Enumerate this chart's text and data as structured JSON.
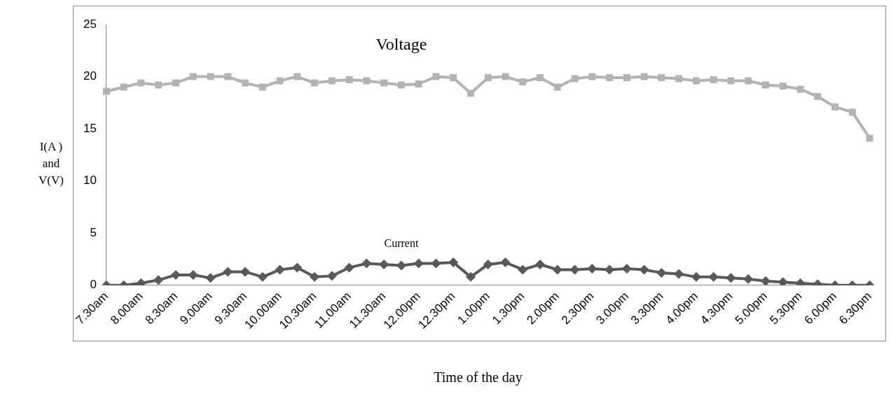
{
  "chart_data": {
    "type": "line",
    "xlabel": "Time of the day",
    "ylabel": "I(A ) and V(V)",
    "categories": [
      "7.30am",
      null,
      "8.00am",
      null,
      "8.30am",
      null,
      "9.00am",
      null,
      "9.30am",
      null,
      "10.00am",
      null,
      "10.30am",
      null,
      "11.00am",
      null,
      "11.30am",
      null,
      "12.00pm",
      null,
      "12.30pm",
      null,
      "1.00pm",
      null,
      "1.30pm",
      null,
      "2.00pm",
      null,
      "2.30pm",
      null,
      "3.00pm",
      null,
      "3.30pm",
      null,
      "4.00pm",
      null,
      "4.30pm",
      null,
      "5.00pm",
      null,
      "5.30pm",
      null,
      "6.00pm",
      null,
      "6.30pm"
    ],
    "series": [
      {
        "name": "Voltage",
        "color": "#b3b3b3",
        "marker": "square",
        "values": [
          18.6,
          19,
          19.4,
          19.2,
          19.4,
          20,
          20,
          20,
          19.4,
          19,
          19.6,
          20,
          19.4,
          19.6,
          19.7,
          19.6,
          19.4,
          19.2,
          19.3,
          20,
          19.9,
          18.4,
          19.9,
          20,
          19.5,
          19.9,
          19,
          19.8,
          20,
          19.9,
          19.9,
          20,
          19.9,
          19.8,
          19.6,
          19.7,
          19.6,
          19.6,
          19.2,
          19.1,
          18.8,
          18.1,
          17.1,
          16.6,
          14.1
        ]
      },
      {
        "name": "Current",
        "color": "#595959",
        "marker": "diamond",
        "values": [
          0,
          0,
          0.2,
          0.5,
          1,
          1,
          0.7,
          1.3,
          1.3,
          0.8,
          1.5,
          1.7,
          0.8,
          0.9,
          1.7,
          2.1,
          2,
          1.9,
          2.1,
          2.1,
          2.2,
          0.8,
          2,
          2.2,
          1.5,
          2,
          1.5,
          1.5,
          1.6,
          1.5,
          1.6,
          1.5,
          1.2,
          1.1,
          0.8,
          0.8,
          0.7,
          0.6,
          0.4,
          0.3,
          0.2,
          0.1,
          0,
          0,
          0
        ]
      }
    ],
    "ylim": [
      0,
      25
    ],
    "yticks": [
      0,
      5,
      10,
      15,
      20,
      25
    ],
    "grid": false,
    "legend": false
  }
}
